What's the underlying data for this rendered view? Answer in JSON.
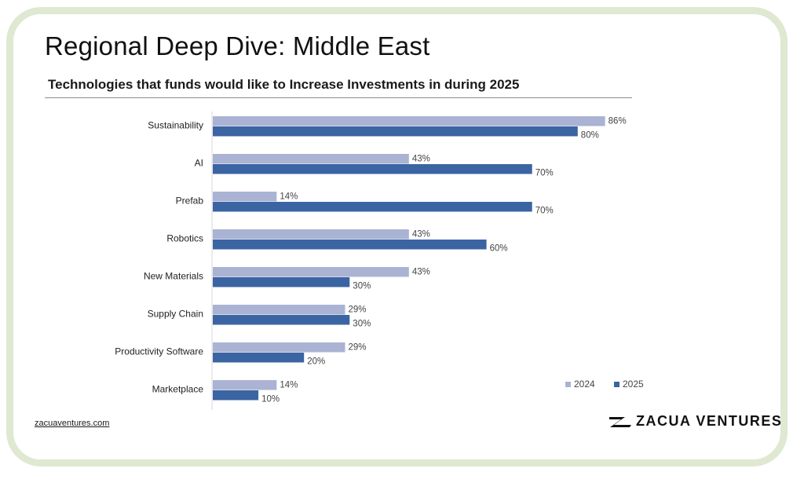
{
  "page": {
    "title": "Regional Deep Dive: Middle East",
    "footer_link": "zacuaventures.com",
    "brand": "ZACUA VENTURES"
  },
  "colors": {
    "series_2024": "#aab3d3",
    "series_2025": "#3b64a3",
    "frame": "#dfe8d1"
  },
  "chart_data": {
    "type": "bar",
    "orientation": "horizontal",
    "title": "Technologies that funds would like to Increase Investments in during 2025",
    "categories": [
      "Sustainability",
      "AI",
      "Prefab",
      "Robotics",
      "New Materials",
      "Supply Chain",
      "Productivity Software",
      "Marketplace"
    ],
    "series": [
      {
        "name": "2024",
        "values": [
          86,
          43,
          14,
          43,
          43,
          29,
          29,
          14
        ]
      },
      {
        "name": "2025",
        "values": [
          80,
          70,
          70,
          60,
          30,
          30,
          20,
          10
        ]
      }
    ],
    "value_suffix": "%",
    "xlim": [
      0,
      100
    ],
    "grid": false,
    "legend": "bottom-right"
  }
}
